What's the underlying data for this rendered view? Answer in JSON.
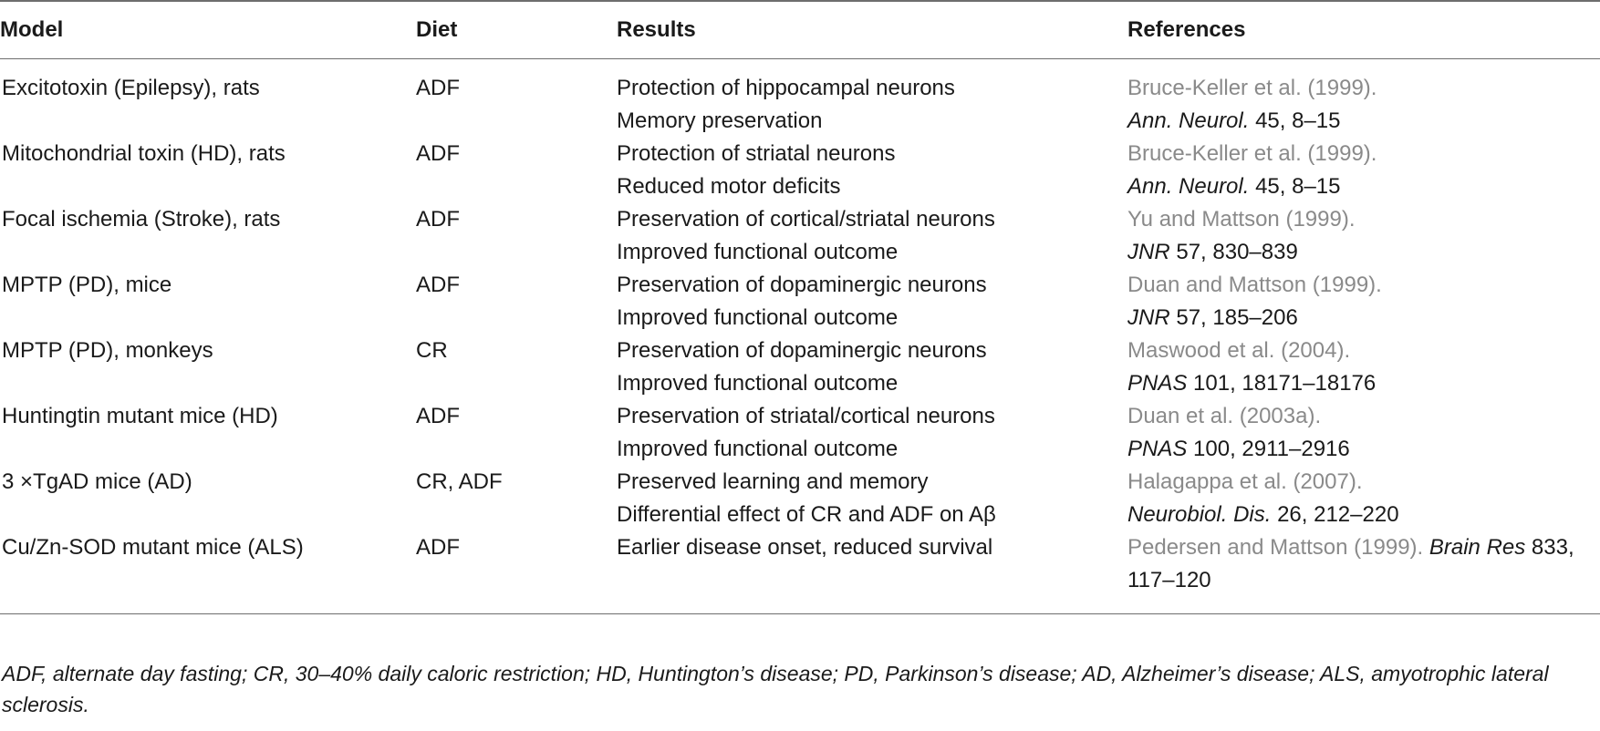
{
  "table": {
    "headers": [
      "Model",
      "Diet",
      "Results",
      "References"
    ],
    "rows": [
      {
        "model": "Excitotoxin (Epilepsy), rats",
        "diet": "ADF",
        "results": [
          "Protection of hippocampal neurons",
          "Memory preservation"
        ],
        "ref_author": "Bruce-Keller et al. (1999).",
        "ref_journal": "Ann. Neurol.",
        "ref_details": " 45, 8–15"
      },
      {
        "model": "Mitochondrial toxin (HD), rats",
        "diet": "ADF",
        "results": [
          "Protection of striatal neurons",
          "Reduced motor deficits"
        ],
        "ref_author": "Bruce-Keller et al. (1999).",
        "ref_journal": "Ann. Neurol.",
        "ref_details": " 45, 8–15"
      },
      {
        "model": "Focal ischemia (Stroke), rats",
        "diet": "ADF",
        "results": [
          "Preservation of cortical/striatal neurons",
          "Improved functional outcome"
        ],
        "ref_author": "Yu and Mattson (1999).",
        "ref_journal": "JNR",
        "ref_details": " 57, 830–839"
      },
      {
        "model": "MPTP (PD), mice",
        "diet": "ADF",
        "results": [
          "Preservation of dopaminergic neurons",
          "Improved functional outcome"
        ],
        "ref_author": "Duan and Mattson (1999).",
        "ref_journal": "JNR",
        "ref_details": " 57, 185–206"
      },
      {
        "model": "MPTP (PD), monkeys",
        "diet": "CR",
        "results": [
          "Preservation of dopaminergic neurons",
          "Improved functional outcome"
        ],
        "ref_author": "Maswood et al. (2004).",
        "ref_journal": "PNAS",
        "ref_details": " 101, 18171–18176"
      },
      {
        "model": "Huntingtin mutant mice (HD)",
        "diet": "ADF",
        "results": [
          "Preservation of striatal/cortical neurons",
          "Improved functional outcome"
        ],
        "ref_author": "Duan et al. (2003a).",
        "ref_journal": "PNAS",
        "ref_details": " 100, 2911–2916"
      },
      {
        "model": "3 ×TgAD mice (AD)",
        "diet": "CR, ADF",
        "results": [
          "Preserved learning and memory",
          "Differential effect of CR and ADF on Aβ"
        ],
        "ref_author": "Halagappa et al. (2007).",
        "ref_journal": "Neurobiol. Dis.",
        "ref_details": " 26, 212–220"
      }
    ],
    "last_row": {
      "model": "Cu/Zn-SOD mutant mice (ALS)",
      "diet": "ADF",
      "result": "Earlier disease onset, reduced survival",
      "ref_author": "Pedersen and Mattson (1999).",
      "ref_journal": "Brain Res",
      "ref_details_1": " 833,",
      "ref_details_2": "117–120"
    }
  },
  "footnote": "ADF, alternate day fasting; CR, 30–40% daily caloric restriction; HD, Huntington’s disease; PD, Parkinson’s disease; AD, Alzheimer’s disease; ALS, amyotrophic lateral sclerosis."
}
